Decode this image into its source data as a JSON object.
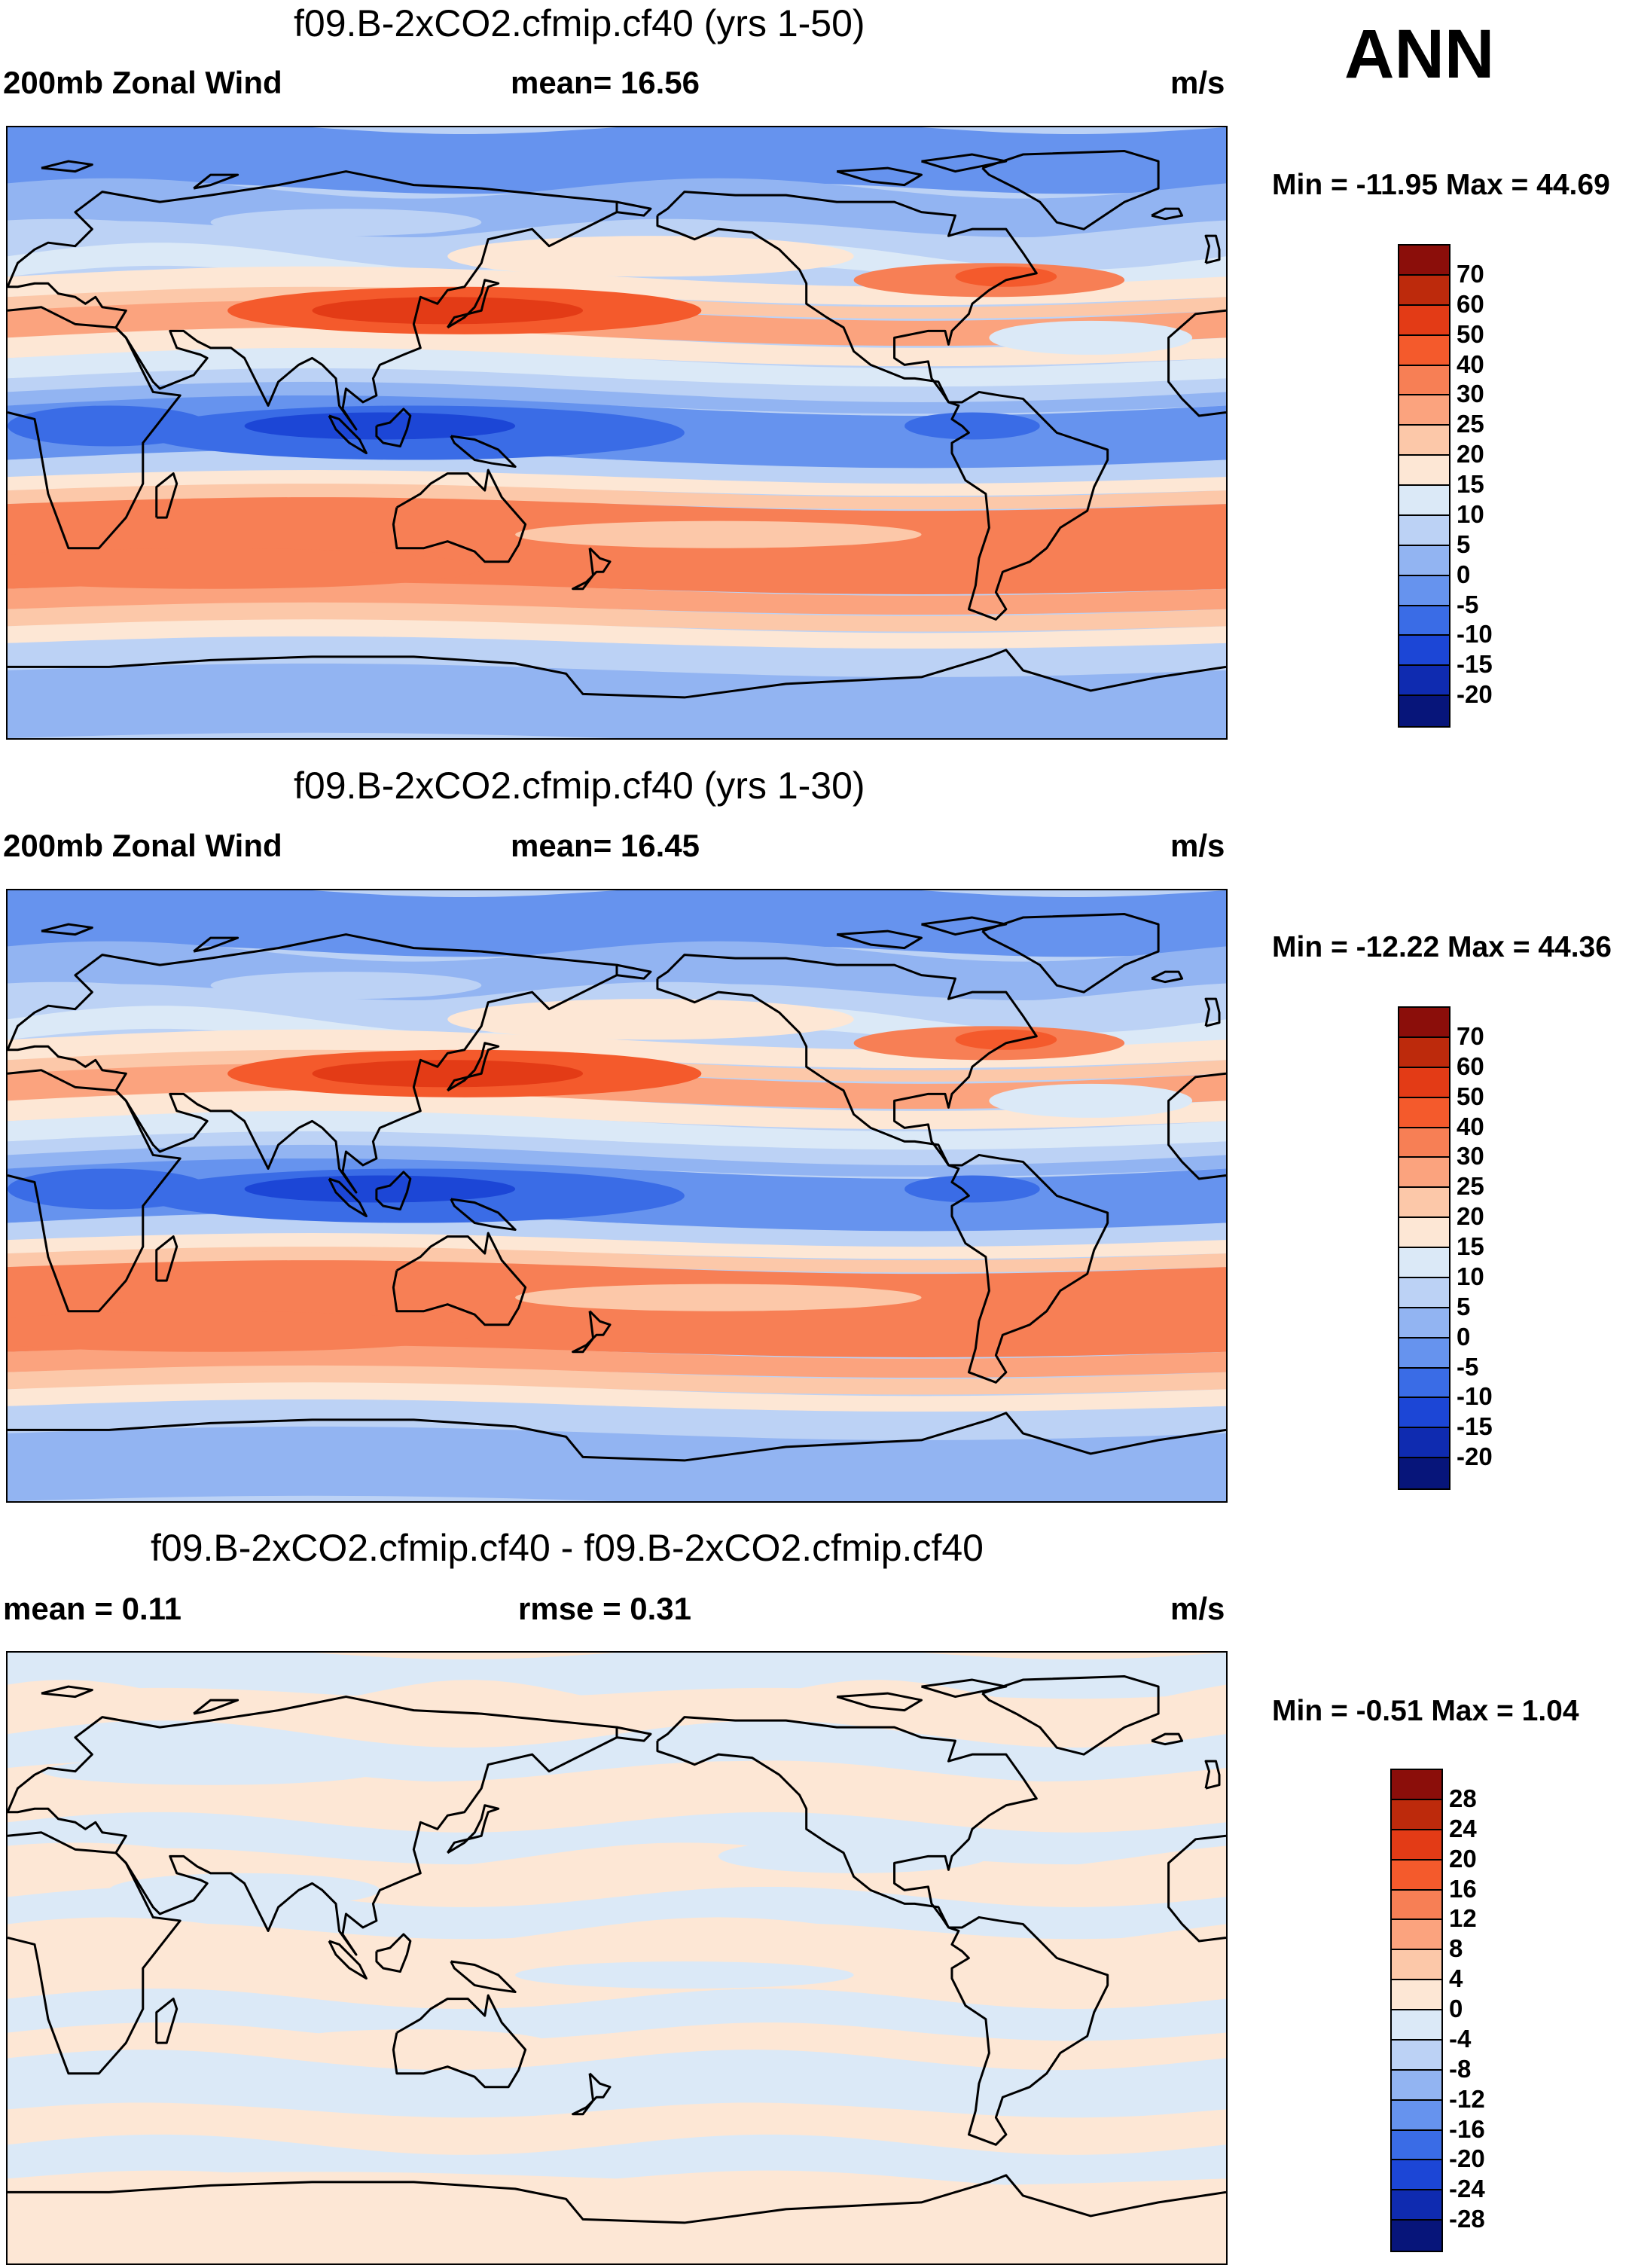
{
  "season": "ANN",
  "units": "m/s",
  "panels": [
    {
      "title": "f09.B-2xCO2.cfmip.cf40 (yrs 1-50)",
      "left_label": "200mb Zonal Wind",
      "center_label": "mean=  16.56",
      "right_label": "m/s",
      "stats": "Min = -11.95 Max =  44.69",
      "colorbar": {
        "labels": [
          "70",
          "60",
          "50",
          "40",
          "30",
          "25",
          "20",
          "15",
          "10",
          "5",
          "0",
          "-5",
          "-10",
          "-15",
          "-20"
        ],
        "colors": [
          "#8b0e0a",
          "#bd2a0c",
          "#e33b16",
          "#f45a2c",
          "#f77f55",
          "#fba37e",
          "#fcc8a9",
          "#fde7d5",
          "#dbe9f7",
          "#bcd2f5",
          "#92b4f2",
          "#6693ee",
          "#3a6ce6",
          "#1c46d6",
          "#0f2bb0",
          "#07157a"
        ]
      },
      "field": "mean"
    },
    {
      "title": "f09.B-2xCO2.cfmip.cf40 (yrs 1-30)",
      "left_label": "200mb Zonal Wind",
      "center_label": "mean=  16.45",
      "right_label": "m/s",
      "stats": "Min = -12.22 Max =  44.36",
      "colorbar": {
        "labels": [
          "70",
          "60",
          "50",
          "40",
          "30",
          "25",
          "20",
          "15",
          "10",
          "5",
          "0",
          "-5",
          "-10",
          "-15",
          "-20"
        ],
        "colors": [
          "#8b0e0a",
          "#bd2a0c",
          "#e33b16",
          "#f45a2c",
          "#f77f55",
          "#fba37e",
          "#fcc8a9",
          "#fde7d5",
          "#dbe9f7",
          "#bcd2f5",
          "#92b4f2",
          "#6693ee",
          "#3a6ce6",
          "#1c46d6",
          "#0f2bb0",
          "#07157a"
        ]
      },
      "field": "mean"
    },
    {
      "title": "f09.B-2xCO2.cfmip.cf40 - f09.B-2xCO2.cfmip.cf40",
      "left_label": "mean =   0.11",
      "center_label": "rmse =   0.31",
      "right_label": "m/s",
      "stats": "Min =  -0.51 Max =    1.04",
      "colorbar": {
        "labels": [
          "28",
          "24",
          "20",
          "16",
          "12",
          "8",
          "4",
          "0",
          "-4",
          "-8",
          "-12",
          "-16",
          "-20",
          "-24",
          "-28"
        ],
        "colors": [
          "#8b0e0a",
          "#bd2a0c",
          "#e33b16",
          "#f45a2c",
          "#f77f55",
          "#fba37e",
          "#fcc8a9",
          "#fde7d5",
          "#dbe9f7",
          "#bcd2f5",
          "#92b4f2",
          "#6693ee",
          "#3a6ce6",
          "#1c46d6",
          "#0f2bb0",
          "#07157a"
        ]
      },
      "field": "diff"
    }
  ]
}
